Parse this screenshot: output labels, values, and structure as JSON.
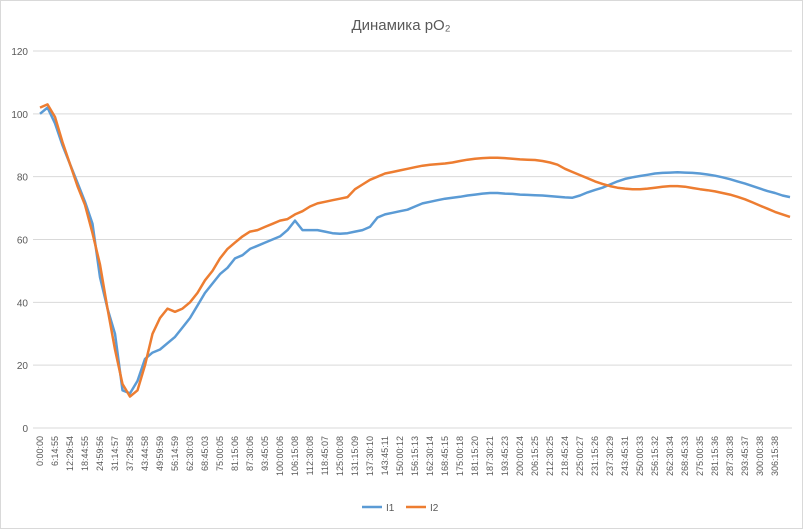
{
  "chart_data": {
    "type": "line",
    "title": "Динамика pO₂",
    "categories": [
      "0:00:00",
      null,
      "6:14:55",
      null,
      "12:29:54",
      null,
      "18:44:55",
      null,
      "24:59:56",
      null,
      "31:14:57",
      null,
      "37:29:58",
      null,
      "43:44:58",
      null,
      "49:59:59",
      null,
      "56:14:59",
      null,
      "62:30:03",
      null,
      "68:45:03",
      null,
      "75:00:05",
      null,
      "81:15:06",
      null,
      "87:30:06",
      null,
      "93:45:05",
      null,
      "100:00:06",
      null,
      "106:15:08",
      null,
      "112:30:08",
      null,
      "118:45:07",
      null,
      "125:00:08",
      null,
      "131:15:09",
      null,
      "137:30:10",
      null,
      "143:45:11",
      null,
      "150:00:12",
      null,
      "156:15:13",
      null,
      "162:30:14",
      null,
      "168:45:15",
      null,
      "175:00:18",
      null,
      "181:15:20",
      null,
      "187:30:21",
      null,
      "193:45:23",
      null,
      "200:00:24",
      null,
      "206:15:25",
      null,
      "212:30:25",
      null,
      "218:45:24",
      null,
      "225:00:27",
      null,
      "231:15:26",
      null,
      "237:30:29",
      null,
      "243:45:31",
      null,
      "250:00:33",
      null,
      "256:15:32",
      null,
      "262:30:34",
      null,
      "268:45:33",
      null,
      "275:00:35",
      null,
      "281:15:36",
      null,
      "287:30:38",
      null,
      "293:45:37",
      null,
      "300:00:38",
      null,
      "306:15:38",
      null,
      null
    ],
    "series": [
      {
        "name": "I1",
        "color": "#5b9bd5",
        "values": [
          100,
          102,
          97,
          90,
          84,
          78,
          72,
          65,
          48,
          38,
          30,
          12,
          11,
          15,
          22,
          24,
          25,
          27,
          29,
          32,
          35,
          39,
          43,
          46,
          49,
          51,
          54,
          55,
          57,
          58,
          59,
          60,
          61,
          63,
          66,
          63,
          63,
          63,
          62.5,
          62,
          61.8,
          62,
          62.5,
          63,
          64,
          67,
          68,
          68.5,
          69,
          69.5,
          70.5,
          71.5,
          72,
          72.5,
          73,
          73.3,
          73.6,
          74,
          74.3,
          74.6,
          74.8,
          74.8,
          74.6,
          74.5,
          74.3,
          74.2,
          74.1,
          74,
          73.8,
          73.6,
          73.4,
          73.3,
          74,
          75,
          75.8,
          76.5,
          77.5,
          78.5,
          79.3,
          79.8,
          80.2,
          80.6,
          81,
          81.2,
          81.3,
          81.4,
          81.3,
          81.2,
          81,
          80.7,
          80.3,
          79.8,
          79.2,
          78.5,
          77.8,
          77,
          76.2,
          75.4,
          74.8,
          74,
          73.5
        ]
      },
      {
        "name": "I2",
        "color": "#ed7d31",
        "values": [
          102,
          103,
          99,
          91,
          84,
          77,
          71,
          62,
          52,
          38,
          25,
          14,
          10,
          12,
          20,
          30,
          35,
          38,
          37,
          38,
          40,
          43,
          47,
          50,
          54,
          57,
          59,
          61,
          62.5,
          63,
          64,
          65,
          66,
          66.5,
          68,
          69,
          70.5,
          71.5,
          72,
          72.5,
          73,
          73.5,
          76,
          77.5,
          79,
          80,
          81,
          81.5,
          82,
          82.5,
          83,
          83.5,
          83.8,
          84,
          84.2,
          84.5,
          85,
          85.4,
          85.7,
          85.9,
          86,
          86,
          85.9,
          85.7,
          85.5,
          85.4,
          85.3,
          85,
          84.5,
          83.8,
          82.5,
          81.5,
          80.5,
          79.5,
          78.5,
          77.7,
          77,
          76.5,
          76.2,
          76,
          76,
          76.2,
          76.5,
          76.8,
          77,
          77,
          76.8,
          76.4,
          76,
          75.7,
          75.3,
          74.8,
          74.3,
          73.6,
          72.8,
          71.8,
          70.8,
          69.8,
          68.8,
          68,
          67.2
        ]
      }
    ],
    "ylim": [
      0,
      120
    ],
    "yticks": [
      0,
      20,
      40,
      60,
      80,
      100,
      120
    ],
    "grid": true,
    "legend": "bottom"
  }
}
